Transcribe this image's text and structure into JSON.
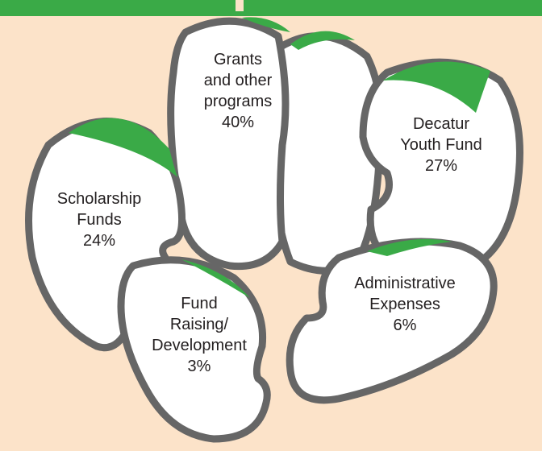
{
  "segments": [
    {
      "lines": [
        "Grants",
        "and other",
        "programs"
      ],
      "value": "40%"
    },
    {
      "lines": [
        "Decatur",
        "Youth Fund"
      ],
      "value": "27%"
    },
    {
      "lines": [
        "Scholarship",
        "Funds"
      ],
      "value": "24%"
    },
    {
      "lines": [
        "Administrative",
        "Expenses"
      ],
      "value": "6%"
    },
    {
      "lines": [
        "Fund",
        "Raising/",
        "Development"
      ],
      "value": "3%"
    }
  ]
}
